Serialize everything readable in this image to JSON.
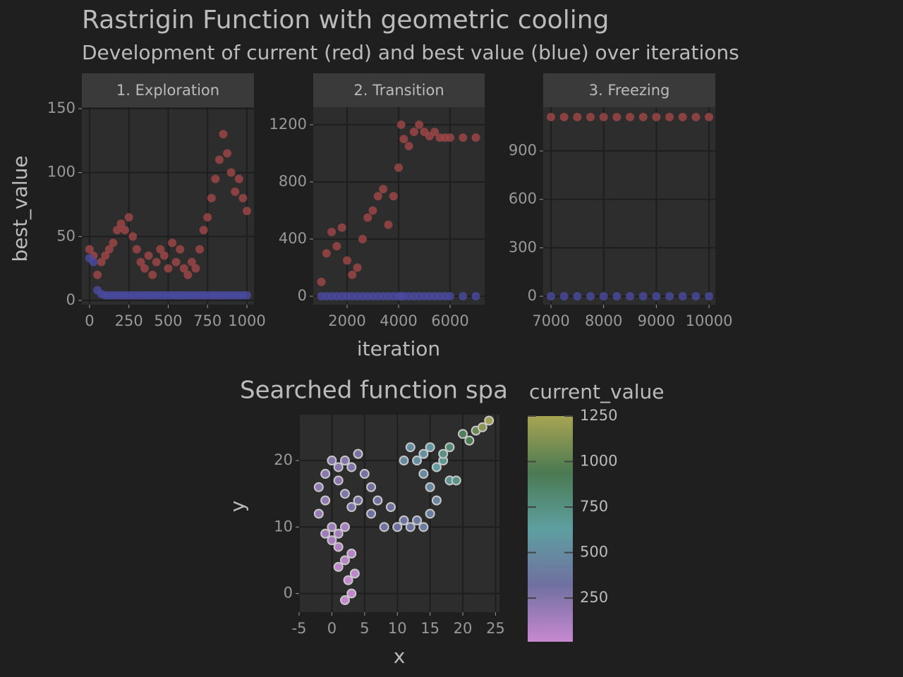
{
  "title": "Rastrigin Function with geometric cooling",
  "subtitle": "Development of current (red) and best value (blue) over iterations",
  "ylabel": "best_value",
  "xlabel": "iteration",
  "chart_data": [
    {
      "type": "scatter",
      "facet": "1. Exploration",
      "x": [
        0,
        25,
        50,
        75,
        100,
        125,
        150,
        175,
        200,
        225,
        250,
        275,
        300,
        325,
        350,
        375,
        400,
        425,
        450,
        475,
        500,
        525,
        550,
        575,
        600,
        625,
        650,
        675,
        700,
        725,
        750,
        775,
        800,
        825,
        850,
        875,
        900,
        925,
        950,
        975,
        1000
      ],
      "series": [
        {
          "color": "#a04646",
          "values": [
            40,
            35,
            20,
            30,
            35,
            40,
            45,
            55,
            60,
            55,
            65,
            50,
            40,
            30,
            25,
            35,
            20,
            30,
            40,
            35,
            25,
            45,
            30,
            40,
            25,
            20,
            30,
            25,
            40,
            55,
            65,
            80,
            95,
            110,
            130,
            115,
            100,
            85,
            95,
            80,
            70
          ]
        },
        {
          "color": "#4a4aa0",
          "values": [
            33,
            30,
            8,
            5,
            4,
            4,
            4,
            4,
            4,
            4,
            4,
            4,
            4,
            4,
            4,
            4,
            4,
            4,
            4,
            4,
            4,
            4,
            4,
            4,
            4,
            4,
            4,
            4,
            4,
            4,
            4,
            4,
            4,
            4,
            4,
            4,
            4,
            4,
            4,
            4,
            4
          ]
        }
      ],
      "xlim": [
        -49,
        1045
      ],
      "ylim": [
        -3.3,
        151.1
      ],
      "xticks": [
        0,
        250,
        500,
        750,
        1000
      ],
      "yticks": [
        0,
        50,
        100,
        150
      ]
    },
    {
      "type": "scatter",
      "facet": "2. Transition",
      "x": [
        1000,
        1200,
        1400,
        1600,
        1800,
        2000,
        2200,
        2400,
        2600,
        2800,
        3000,
        3200,
        3400,
        3600,
        3800,
        4000,
        4100,
        4200,
        4400,
        4600,
        4800,
        5000,
        5200,
        5400,
        5600,
        5800,
        6000,
        6500,
        7000
      ],
      "series": [
        {
          "color": "#a04646",
          "values": [
            100,
            300,
            450,
            350,
            480,
            250,
            150,
            200,
            400,
            550,
            600,
            700,
            750,
            500,
            700,
            900,
            1200,
            1100,
            1050,
            1150,
            1200,
            1150,
            1120,
            1150,
            1110,
            1110,
            1110,
            1110,
            1110
          ]
        },
        {
          "color": "#4a4aa0",
          "values": [
            0,
            0,
            0,
            0,
            0,
            0,
            0,
            0,
            0,
            0,
            0,
            0,
            0,
            0,
            0,
            0,
            0,
            0,
            0,
            0,
            0,
            0,
            0,
            0,
            0,
            0,
            0,
            0,
            0
          ]
        }
      ],
      "xlim": [
        685,
        7342
      ],
      "ylim": [
        -59,
        1323
      ],
      "xticks": [
        2000,
        4000,
        6000
      ],
      "yticks": [
        0,
        400,
        800,
        1200
      ]
    },
    {
      "type": "scatter",
      "facet": "3. Freezing",
      "x": [
        7000,
        7250,
        7500,
        7750,
        8000,
        8250,
        8500,
        8750,
        9000,
        9250,
        9500,
        9750,
        10000
      ],
      "series": [
        {
          "color": "#a04646",
          "values": [
            1110,
            1110,
            1110,
            1110,
            1110,
            1110,
            1110,
            1110,
            1110,
            1110,
            1110,
            1110,
            1110
          ]
        },
        {
          "color": "#4a4aa0",
          "values": [
            0,
            0,
            0,
            0,
            0,
            0,
            0,
            0,
            0,
            0,
            0,
            0,
            0
          ]
        }
      ],
      "xlim": [
        6853,
        10120
      ],
      "ylim": [
        -52,
        1171
      ],
      "xticks": [
        7000,
        8000,
        9000,
        10000
      ],
      "yticks": [
        0,
        300,
        600,
        900
      ]
    },
    {
      "type": "colorscatter",
      "title": "Searched function spa",
      "xlabel": "x",
      "ylabel": "y",
      "x": [
        2,
        3,
        2.5,
        3.5,
        1,
        2,
        3,
        1,
        0,
        -1,
        0,
        1,
        2,
        -2,
        -1,
        -2,
        -1,
        0,
        1,
        2,
        3,
        1,
        2,
        3,
        4,
        5,
        4,
        6,
        6,
        7,
        8,
        9,
        10,
        11,
        12,
        13,
        14,
        15,
        16,
        15,
        14,
        13,
        12,
        11,
        14,
        15,
        16,
        17,
        18,
        19,
        17,
        18,
        20,
        21,
        22,
        23,
        24
      ],
      "y": [
        -1,
        0,
        2,
        3,
        4,
        5,
        6,
        7,
        8,
        9,
        10,
        9,
        10,
        12,
        14,
        16,
        18,
        20,
        19,
        20,
        19,
        17,
        15,
        13,
        14,
        18,
        21,
        16,
        12,
        14,
        10,
        13,
        10,
        11,
        10,
        11,
        10,
        12,
        14,
        16,
        18,
        20,
        22,
        20,
        21,
        22,
        19,
        20,
        17,
        17,
        21,
        22,
        24,
        23,
        24.5,
        25,
        26
      ],
      "color_values": [
        20,
        30,
        25,
        40,
        50,
        60,
        70,
        90,
        120,
        150,
        160,
        140,
        130,
        180,
        200,
        210,
        220,
        240,
        230,
        250,
        260,
        240,
        260,
        280,
        290,
        300,
        280,
        310,
        320,
        330,
        340,
        330,
        320,
        340,
        350,
        380,
        400,
        420,
        450,
        480,
        500,
        520,
        510,
        500,
        540,
        580,
        620,
        680,
        700,
        720,
        750,
        800,
        900,
        950,
        1050,
        1150,
        1230
      ],
      "colorbar_title": "current_value",
      "colormap": [
        "#c888d0",
        "#7070a0",
        "#5e9fa0",
        "#4a7a52",
        "#a8a452"
      ],
      "colorbar_lim": [
        10,
        1250
      ],
      "colorbar_ticks": [
        250,
        500,
        750,
        1000,
        1250
      ],
      "xlim": [
        -5,
        25.6
      ],
      "ylim": [
        -2.8,
        26.9
      ],
      "xticks": [
        -5,
        0,
        5,
        10,
        15,
        20,
        25
      ],
      "yticks": [
        0,
        10,
        20
      ]
    }
  ]
}
